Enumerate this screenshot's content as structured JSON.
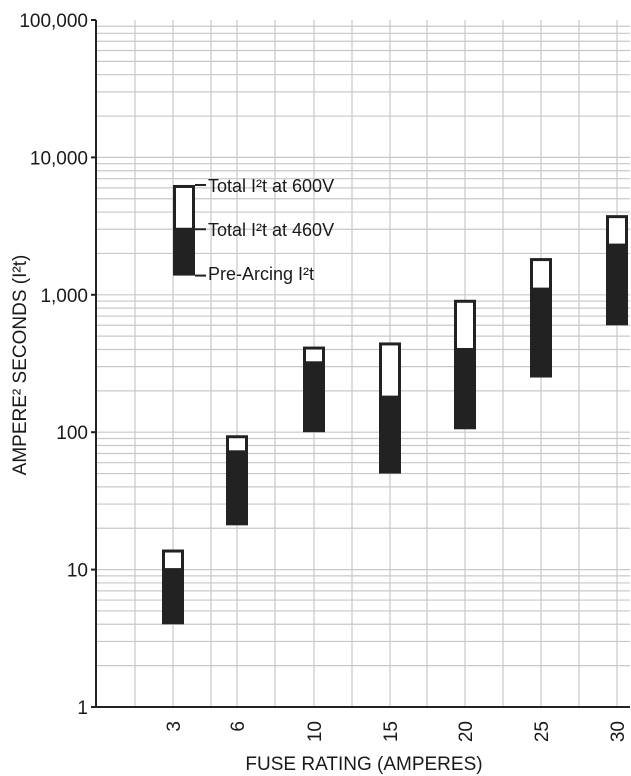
{
  "chart_data": {
    "type": "bar",
    "subtype": "floating-range",
    "title": "",
    "xlabel": "FUSE RATING (AMPERES)",
    "ylabel": "AMPERE² SECONDS (I²t)",
    "yscale": "log",
    "ylim": [
      1,
      100000
    ],
    "ytick_labels": [
      "1",
      "10",
      "100",
      "1,000",
      "10,000",
      "100,000"
    ],
    "ytick_values": [
      1,
      10,
      100,
      1000,
      10000,
      100000
    ],
    "grid": true,
    "categories": [
      "3",
      "6",
      "10",
      "15",
      "20",
      "25",
      "30"
    ],
    "series": [
      {
        "name": "Pre-Arcing I²t",
        "values": [
          4,
          21,
          100,
          50,
          105,
          250,
          600
        ]
      },
      {
        "name": "Total I²t at 460V",
        "values": [
          10,
          72,
          320,
          180,
          400,
          1100,
          2300
        ]
      },
      {
        "name": "Total I²t at 600V",
        "values": [
          14,
          95,
          420,
          450,
          920,
          1850,
          3800
        ]
      }
    ],
    "legend": {
      "placement": "top-left",
      "labels": [
        "Total I²t at 600V",
        "Total I²t at 460V",
        "Pre-Arcing I²t"
      ],
      "sample": {
        "pre_arcing": 1380,
        "total_460": 3000,
        "total_600": 6300
      }
    },
    "colors": {
      "fill_dark": "#222222",
      "fill_light": "#ffffff",
      "grid": "#c8c8c8"
    }
  }
}
